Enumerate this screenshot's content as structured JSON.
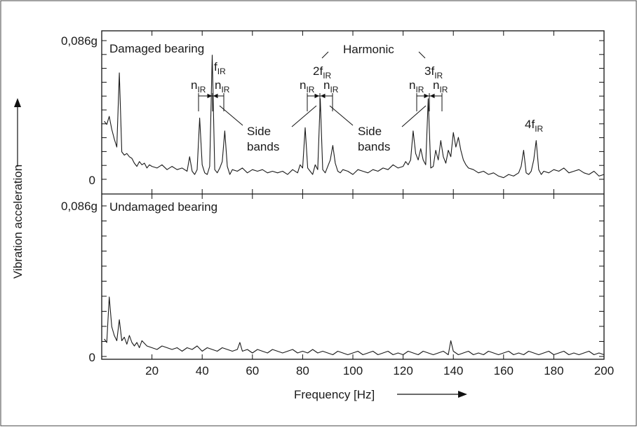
{
  "chart_data": {
    "type": "line",
    "xlabel": "Frequency [Hz]",
    "ylabel": "Vibration acceleration",
    "xlim": [
      0,
      200
    ],
    "x_ticks": [
      "20",
      "40",
      "60",
      "80",
      "100",
      "120",
      "140",
      "160",
      "180",
      "200"
    ],
    "ylim": [
      0,
      0.086
    ],
    "y_top_label": "0,086g",
    "y_zero_label": "0",
    "grid": false,
    "colors": {
      "line": "#1a1a1a",
      "background": "#ffffff"
    },
    "panels": [
      {
        "title": "Damaged bearing",
        "series": [
          {
            "x": [
              1,
              2,
              3,
              4,
              5,
              6,
              7,
              8,
              9,
              10,
              11,
              12,
              13,
              14,
              15,
              16,
              17,
              18,
              19,
              20,
              22,
              24,
              26,
              28,
              30,
              32,
              34,
              35,
              36,
              37,
              38,
              39,
              40,
              41,
              42,
              43,
              44,
              45,
              46,
              47,
              48,
              49,
              50,
              51,
              52,
              54,
              56,
              58,
              60,
              62,
              64,
              66,
              68,
              70,
              72,
              74,
              76,
              78,
              79,
              80,
              81,
              82,
              83,
              84,
              85,
              86,
              87,
              88,
              89,
              90,
              91,
              92,
              93,
              94,
              95,
              96,
              98,
              100,
              102,
              104,
              106,
              108,
              110,
              112,
              114,
              116,
              118,
              120,
              121,
              122,
              123,
              124,
              125,
              126,
              127,
              128,
              129,
              130,
              131,
              132,
              133,
              134,
              135,
              136,
              137,
              138,
              139,
              140,
              141,
              142,
              143,
              144,
              145,
              146,
              148,
              150,
              152,
              154,
              156,
              158,
              160,
              162,
              164,
              166,
              167,
              168,
              169,
              170,
              171,
              172,
              173,
              174,
              175,
              176,
              178,
              180,
              182,
              184,
              186,
              188,
              190,
              192,
              194,
              196,
              198,
              200
            ],
            "y": [
              0.036,
              0.034,
              0.039,
              0.031,
              0.025,
              0.02,
              0.066,
              0.017,
              0.015,
              0.016,
              0.014,
              0.013,
              0.01,
              0.008,
              0.011,
              0.009,
              0.01,
              0.007,
              0.009,
              0.008,
              0.007,
              0.009,
              0.006,
              0.008,
              0.006,
              0.007,
              0.005,
              0.014,
              0.005,
              0.003,
              0.006,
              0.038,
              0.009,
              0.004,
              0.003,
              0.008,
              0.077,
              0.006,
              0.004,
              0.007,
              0.011,
              0.03,
              0.008,
              0.003,
              0.006,
              0.005,
              0.007,
              0.004,
              0.006,
              0.005,
              0.006,
              0.004,
              0.005,
              0.004,
              0.005,
              0.003,
              0.006,
              0.004,
              0.009,
              0.007,
              0.032,
              0.007,
              0.005,
              0.003,
              0.009,
              0.006,
              0.05,
              0.006,
              0.004,
              0.008,
              0.012,
              0.021,
              0.01,
              0.005,
              0.004,
              0.006,
              0.005,
              0.003,
              0.006,
              0.005,
              0.004,
              0.006,
              0.005,
              0.007,
              0.006,
              0.009,
              0.007,
              0.008,
              0.011,
              0.009,
              0.012,
              0.03,
              0.016,
              0.012,
              0.019,
              0.012,
              0.009,
              0.05,
              0.007,
              0.008,
              0.018,
              0.012,
              0.024,
              0.014,
              0.01,
              0.018,
              0.014,
              0.029,
              0.02,
              0.026,
              0.018,
              0.012,
              0.009,
              0.007,
              0.006,
              0.004,
              0.005,
              0.003,
              0.004,
              0.002,
              0.001,
              0.003,
              0.002,
              0.004,
              0.008,
              0.018,
              0.004,
              0.003,
              0.005,
              0.012,
              0.024,
              0.006,
              0.003,
              0.005,
              0.004,
              0.006,
              0.005,
              0.007,
              0.004,
              0.005,
              0.006,
              0.004,
              0.003,
              0.005,
              0.002,
              0.003
            ]
          }
        ],
        "annotations": {
          "f1": "f",
          "f2": "2f",
          "f3": "3f",
          "f4": "4f",
          "subscript": "IR",
          "n": "n",
          "harmonic": "Harmonic",
          "side1": "Side",
          "side2": "bands"
        }
      },
      {
        "title": "Undamaged bearing",
        "series": [
          {
            "x": [
              1,
              2,
              3,
              4,
              5,
              6,
              7,
              8,
              9,
              10,
              11,
              12,
              13,
              14,
              15,
              16,
              18,
              20,
              22,
              24,
              26,
              28,
              30,
              32,
              34,
              36,
              38,
              40,
              42,
              44,
              46,
              48,
              50,
              52,
              54,
              55,
              56,
              58,
              60,
              62,
              64,
              66,
              68,
              70,
              72,
              74,
              76,
              78,
              80,
              82,
              84,
              86,
              88,
              90,
              92,
              94,
              96,
              98,
              100,
              102,
              104,
              106,
              108,
              110,
              112,
              114,
              116,
              118,
              120,
              122,
              124,
              126,
              128,
              130,
              132,
              134,
              136,
              138,
              139,
              140,
              142,
              144,
              146,
              148,
              150,
              152,
              154,
              156,
              158,
              160,
              162,
              164,
              166,
              168,
              170,
              172,
              174,
              176,
              178,
              180,
              182,
              184,
              186,
              188,
              190,
              192,
              194,
              196,
              198,
              200
            ],
            "y": [
              0.01,
              0.008,
              0.034,
              0.017,
              0.012,
              0.009,
              0.021,
              0.009,
              0.011,
              0.007,
              0.012,
              0.008,
              0.006,
              0.008,
              0.005,
              0.009,
              0.006,
              0.005,
              0.004,
              0.006,
              0.005,
              0.004,
              0.005,
              0.003,
              0.005,
              0.004,
              0.006,
              0.003,
              0.005,
              0.004,
              0.003,
              0.005,
              0.004,
              0.003,
              0.004,
              0.008,
              0.003,
              0.004,
              0.002,
              0.004,
              0.003,
              0.002,
              0.004,
              0.003,
              0.002,
              0.003,
              0.004,
              0.002,
              0.003,
              0.002,
              0.004,
              0.002,
              0.003,
              0.002,
              0.001,
              0.003,
              0.002,
              0.001,
              0.002,
              0.003,
              0.001,
              0.002,
              0.003,
              0.001,
              0.002,
              0.003,
              0.001,
              0.002,
              0.001,
              0.003,
              0.002,
              0.001,
              0.003,
              0.002,
              0.001,
              0.002,
              0.003,
              0.001,
              0.009,
              0.003,
              0.001,
              0.002,
              0.003,
              0.001,
              0.002,
              0.001,
              0.003,
              0.002,
              0.001,
              0.002,
              0.003,
              0.001,
              0.002,
              0.001,
              0.003,
              0.002,
              0.001,
              0.002,
              0.003,
              0.001,
              0.002,
              0.003,
              0.001,
              0.002,
              0.001,
              0.002,
              0.003,
              0.001,
              0.002,
              0.001
            ]
          }
        ]
      }
    ]
  }
}
